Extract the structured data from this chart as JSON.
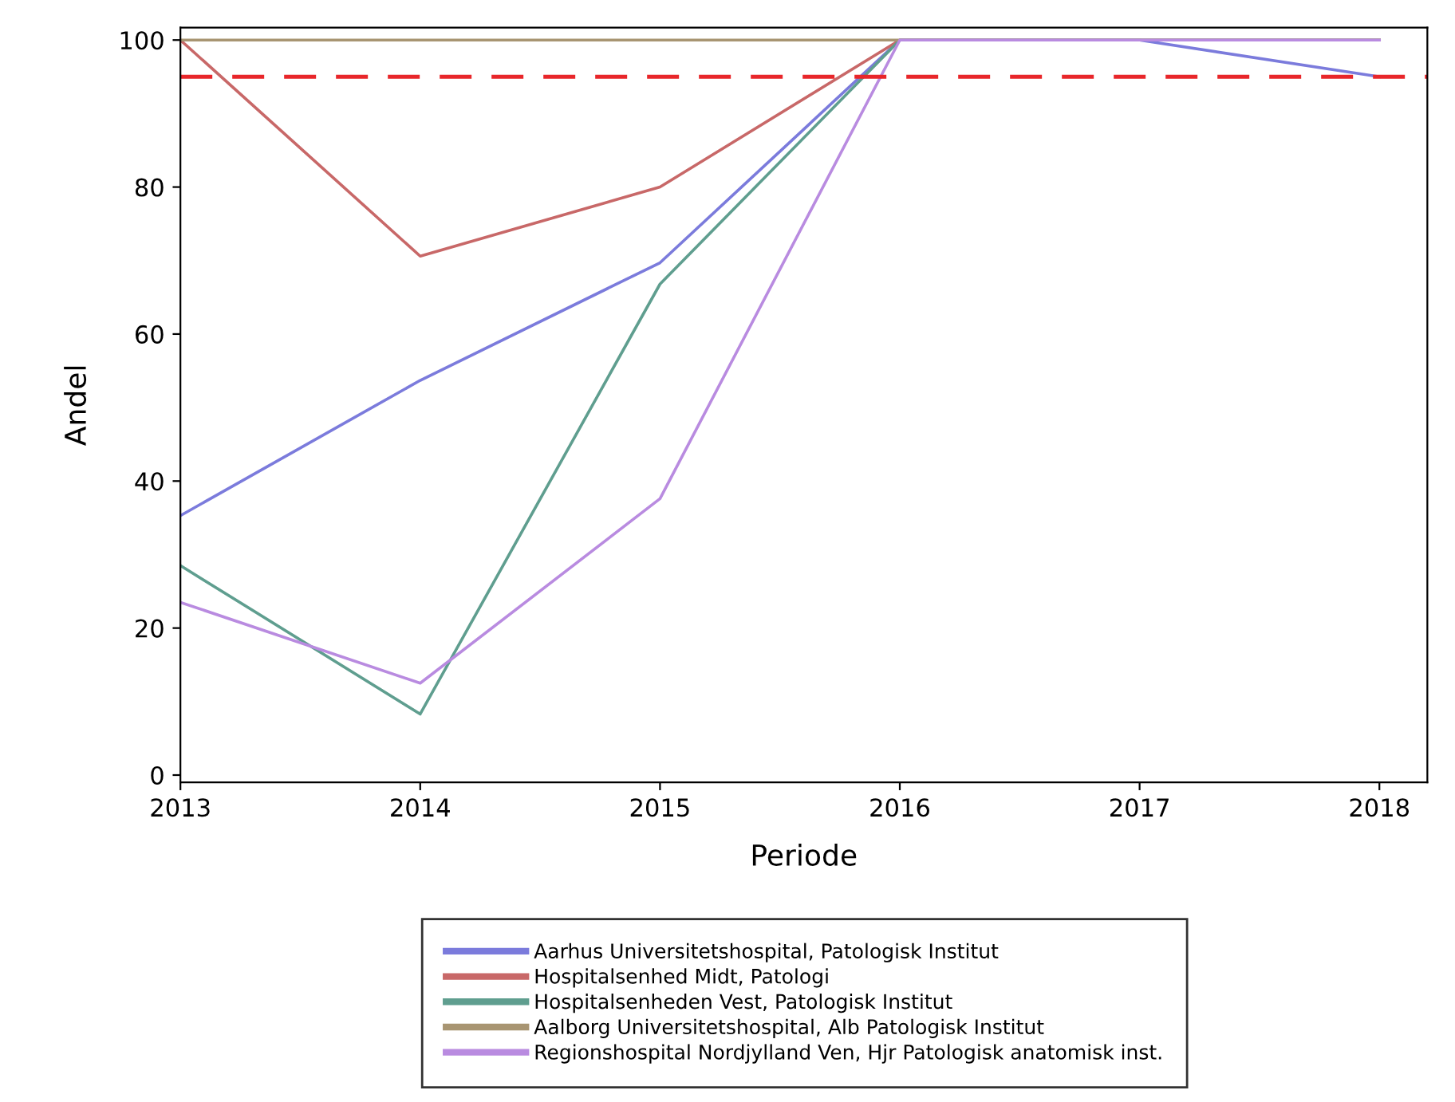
{
  "chart_data": {
    "type": "line",
    "xlabel": "Periode",
    "ylabel": "Andel",
    "x": [
      2013,
      2014,
      2015,
      2016,
      2017,
      2018
    ],
    "xlim": [
      2013,
      2018.2
    ],
    "xticks": [
      2013,
      2014,
      2015,
      2016,
      2017,
      2018
    ],
    "ylim": [
      -1,
      101.7
    ],
    "yticks": [
      0,
      20,
      40,
      60,
      80,
      100
    ],
    "series": [
      {
        "name": "Aarhus Universitetshospital, Patologisk Institut",
        "color": "#7b7bdc",
        "values": [
          35.3,
          53.7,
          69.7,
          100,
          100,
          95
        ]
      },
      {
        "name": "Hospitalsenhed Midt, Patologi",
        "color": "#c86868",
        "values": [
          100,
          70.6,
          80,
          100,
          100,
          100
        ]
      },
      {
        "name": "Hospitalsenheden Vest, Patologisk Institut",
        "color": "#5f9e8f",
        "values": [
          28.5,
          8.3,
          66.8,
          100,
          100,
          100
        ]
      },
      {
        "name": "Aalborg Universitetshospital, Alb Patologisk Institut",
        "color": "#a89572",
        "values": [
          100,
          100,
          100,
          100,
          100,
          100
        ]
      },
      {
        "name": "Regionshospital Nordjylland Ven, Hjr Patologisk anatomisk inst.",
        "color": "#b98be0",
        "values": [
          23.5,
          12.5,
          37.6,
          100,
          100,
          100
        ]
      }
    ],
    "ref_lines": [
      {
        "axis": "y",
        "value": 95,
        "label": null,
        "color": "#e8262a",
        "line_style": "dashed"
      }
    ],
    "grid": false,
    "legend": "bottom",
    "marker": "none",
    "line_style": "solid"
  }
}
